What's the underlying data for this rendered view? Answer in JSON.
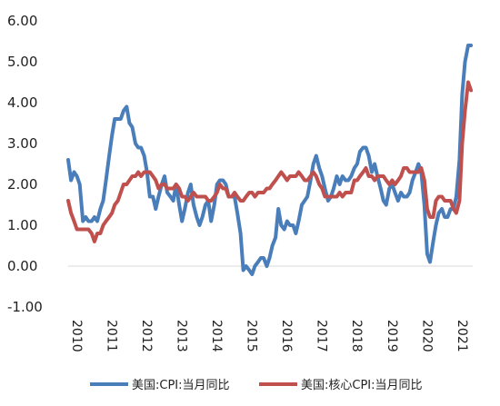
{
  "chart_data": {
    "type": "line",
    "title": "",
    "xlabel": "",
    "ylabel": "",
    "ylim": [
      -1,
      6
    ],
    "yticks": [
      "6.00",
      "5.00",
      "4.00",
      "3.00",
      "2.00",
      "1.00",
      "0.00",
      "-1.00"
    ],
    "xticks": [
      "2010",
      "2011",
      "2012",
      "2013",
      "2014",
      "2015",
      "2016",
      "2017",
      "2018",
      "2019",
      "2020",
      "2021"
    ],
    "grid": false,
    "legend_position": "bottom",
    "series": [
      {
        "name": "美国:CPI:当月同比",
        "color": "#4a7ebb",
        "points": [
          [
            2010.0,
            2.6
          ],
          [
            2010.08,
            2.1
          ],
          [
            2010.17,
            2.3
          ],
          [
            2010.25,
            2.2
          ],
          [
            2010.33,
            2.0
          ],
          [
            2010.42,
            1.1
          ],
          [
            2010.5,
            1.2
          ],
          [
            2010.58,
            1.1
          ],
          [
            2010.67,
            1.1
          ],
          [
            2010.75,
            1.2
          ],
          [
            2010.83,
            1.1
          ],
          [
            2010.92,
            1.4
          ],
          [
            2011.0,
            1.6
          ],
          [
            2011.08,
            2.1
          ],
          [
            2011.17,
            2.7
          ],
          [
            2011.25,
            3.2
          ],
          [
            2011.33,
            3.6
          ],
          [
            2011.42,
            3.6
          ],
          [
            2011.5,
            3.6
          ],
          [
            2011.58,
            3.8
          ],
          [
            2011.67,
            3.9
          ],
          [
            2011.75,
            3.5
          ],
          [
            2011.83,
            3.4
          ],
          [
            2011.92,
            3.0
          ],
          [
            2012.0,
            2.9
          ],
          [
            2012.08,
            2.9
          ],
          [
            2012.17,
            2.7
          ],
          [
            2012.25,
            2.3
          ],
          [
            2012.33,
            1.7
          ],
          [
            2012.42,
            1.7
          ],
          [
            2012.5,
            1.4
          ],
          [
            2012.58,
            1.7
          ],
          [
            2012.67,
            2.0
          ],
          [
            2012.75,
            2.2
          ],
          [
            2012.83,
            1.8
          ],
          [
            2012.92,
            1.7
          ],
          [
            2013.0,
            1.6
          ],
          [
            2013.08,
            2.0
          ],
          [
            2013.17,
            1.5
          ],
          [
            2013.25,
            1.1
          ],
          [
            2013.33,
            1.4
          ],
          [
            2013.42,
            1.8
          ],
          [
            2013.5,
            2.0
          ],
          [
            2013.58,
            1.5
          ],
          [
            2013.67,
            1.2
          ],
          [
            2013.75,
            1.0
          ],
          [
            2013.83,
            1.2
          ],
          [
            2013.92,
            1.5
          ],
          [
            2014.0,
            1.6
          ],
          [
            2014.08,
            1.1
          ],
          [
            2014.17,
            1.5
          ],
          [
            2014.25,
            2.0
          ],
          [
            2014.33,
            2.1
          ],
          [
            2014.42,
            2.1
          ],
          [
            2014.5,
            2.0
          ],
          [
            2014.58,
            1.7
          ],
          [
            2014.67,
            1.7
          ],
          [
            2014.75,
            1.7
          ],
          [
            2014.83,
            1.3
          ],
          [
            2014.92,
            0.8
          ],
          [
            2015.0,
            -0.1
          ],
          [
            2015.08,
            0.0
          ],
          [
            2015.17,
            -0.1
          ],
          [
            2015.25,
            -0.2
          ],
          [
            2015.33,
            0.0
          ],
          [
            2015.42,
            0.1
          ],
          [
            2015.5,
            0.2
          ],
          [
            2015.58,
            0.2
          ],
          [
            2015.67,
            0.0
          ],
          [
            2015.75,
            0.2
          ],
          [
            2015.83,
            0.5
          ],
          [
            2015.92,
            0.7
          ],
          [
            2016.0,
            1.4
          ],
          [
            2016.08,
            1.0
          ],
          [
            2016.17,
            0.9
          ],
          [
            2016.25,
            1.1
          ],
          [
            2016.33,
            1.0
          ],
          [
            2016.42,
            1.0
          ],
          [
            2016.5,
            0.8
          ],
          [
            2016.58,
            1.1
          ],
          [
            2016.67,
            1.5
          ],
          [
            2016.75,
            1.6
          ],
          [
            2016.83,
            1.7
          ],
          [
            2016.92,
            2.1
          ],
          [
            2017.0,
            2.5
          ],
          [
            2017.08,
            2.7
          ],
          [
            2017.17,
            2.4
          ],
          [
            2017.25,
            2.2
          ],
          [
            2017.33,
            1.9
          ],
          [
            2017.42,
            1.6
          ],
          [
            2017.5,
            1.7
          ],
          [
            2017.58,
            1.9
          ],
          [
            2017.67,
            2.2
          ],
          [
            2017.75,
            2.0
          ],
          [
            2017.83,
            2.2
          ],
          [
            2017.92,
            2.1
          ],
          [
            2018.0,
            2.1
          ],
          [
            2018.08,
            2.2
          ],
          [
            2018.17,
            2.4
          ],
          [
            2018.25,
            2.5
          ],
          [
            2018.33,
            2.8
          ],
          [
            2018.42,
            2.9
          ],
          [
            2018.5,
            2.9
          ],
          [
            2018.58,
            2.7
          ],
          [
            2018.67,
            2.3
          ],
          [
            2018.75,
            2.5
          ],
          [
            2018.83,
            2.2
          ],
          [
            2018.92,
            1.9
          ],
          [
            2019.0,
            1.6
          ],
          [
            2019.08,
            1.5
          ],
          [
            2019.17,
            1.9
          ],
          [
            2019.25,
            2.0
          ],
          [
            2019.33,
            1.8
          ],
          [
            2019.42,
            1.6
          ],
          [
            2019.5,
            1.8
          ],
          [
            2019.58,
            1.7
          ],
          [
            2019.67,
            1.7
          ],
          [
            2019.75,
            1.8
          ],
          [
            2019.83,
            2.1
          ],
          [
            2019.92,
            2.3
          ],
          [
            2020.0,
            2.5
          ],
          [
            2020.08,
            2.3
          ],
          [
            2020.17,
            1.5
          ],
          [
            2020.25,
            0.3
          ],
          [
            2020.33,
            0.1
          ],
          [
            2020.42,
            0.6
          ],
          [
            2020.5,
            1.0
          ],
          [
            2020.58,
            1.3
          ],
          [
            2020.67,
            1.4
          ],
          [
            2020.75,
            1.2
          ],
          [
            2020.83,
            1.2
          ],
          [
            2020.92,
            1.4
          ],
          [
            2021.0,
            1.4
          ],
          [
            2021.08,
            1.7
          ],
          [
            2021.17,
            2.6
          ],
          [
            2021.25,
            4.2
          ],
          [
            2021.33,
            5.0
          ],
          [
            2021.42,
            5.4
          ],
          [
            2021.5,
            5.4
          ]
        ]
      },
      {
        "name": "美国:核心CPI:当月同比",
        "color": "#c0504d",
        "points": [
          [
            2010.0,
            1.6
          ],
          [
            2010.08,
            1.3
          ],
          [
            2010.17,
            1.1
          ],
          [
            2010.25,
            0.9
          ],
          [
            2010.33,
            0.9
          ],
          [
            2010.42,
            0.9
          ],
          [
            2010.5,
            0.9
          ],
          [
            2010.58,
            0.9
          ],
          [
            2010.67,
            0.8
          ],
          [
            2010.75,
            0.6
          ],
          [
            2010.83,
            0.8
          ],
          [
            2010.92,
            0.8
          ],
          [
            2011.0,
            1.0
          ],
          [
            2011.08,
            1.1
          ],
          [
            2011.17,
            1.2
          ],
          [
            2011.25,
            1.3
          ],
          [
            2011.33,
            1.5
          ],
          [
            2011.42,
            1.6
          ],
          [
            2011.5,
            1.8
          ],
          [
            2011.58,
            2.0
          ],
          [
            2011.67,
            2.0
          ],
          [
            2011.75,
            2.1
          ],
          [
            2011.83,
            2.2
          ],
          [
            2011.92,
            2.2
          ],
          [
            2012.0,
            2.3
          ],
          [
            2012.08,
            2.2
          ],
          [
            2012.17,
            2.3
          ],
          [
            2012.25,
            2.3
          ],
          [
            2012.33,
            2.3
          ],
          [
            2012.42,
            2.2
          ],
          [
            2012.5,
            2.1
          ],
          [
            2012.58,
            1.9
          ],
          [
            2012.67,
            2.0
          ],
          [
            2012.75,
            2.0
          ],
          [
            2012.83,
            1.9
          ],
          [
            2012.92,
            1.9
          ],
          [
            2013.0,
            1.9
          ],
          [
            2013.08,
            2.0
          ],
          [
            2013.17,
            1.9
          ],
          [
            2013.25,
            1.7
          ],
          [
            2013.33,
            1.7
          ],
          [
            2013.42,
            1.6
          ],
          [
            2013.5,
            1.7
          ],
          [
            2013.58,
            1.8
          ],
          [
            2013.67,
            1.7
          ],
          [
            2013.75,
            1.7
          ],
          [
            2013.83,
            1.7
          ],
          [
            2013.92,
            1.7
          ],
          [
            2014.0,
            1.6
          ],
          [
            2014.08,
            1.6
          ],
          [
            2014.17,
            1.7
          ],
          [
            2014.25,
            1.8
          ],
          [
            2014.33,
            2.0
          ],
          [
            2014.42,
            1.9
          ],
          [
            2014.5,
            1.9
          ],
          [
            2014.58,
            1.7
          ],
          [
            2014.67,
            1.7
          ],
          [
            2014.75,
            1.8
          ],
          [
            2014.83,
            1.7
          ],
          [
            2014.92,
            1.6
          ],
          [
            2015.0,
            1.6
          ],
          [
            2015.08,
            1.7
          ],
          [
            2015.17,
            1.8
          ],
          [
            2015.25,
            1.8
          ],
          [
            2015.33,
            1.7
          ],
          [
            2015.42,
            1.8
          ],
          [
            2015.5,
            1.8
          ],
          [
            2015.58,
            1.8
          ],
          [
            2015.67,
            1.9
          ],
          [
            2015.75,
            1.9
          ],
          [
            2015.83,
            2.0
          ],
          [
            2015.92,
            2.1
          ],
          [
            2016.0,
            2.2
          ],
          [
            2016.08,
            2.3
          ],
          [
            2016.17,
            2.2
          ],
          [
            2016.25,
            2.1
          ],
          [
            2016.33,
            2.2
          ],
          [
            2016.42,
            2.2
          ],
          [
            2016.5,
            2.2
          ],
          [
            2016.58,
            2.3
          ],
          [
            2016.67,
            2.2
          ],
          [
            2016.75,
            2.1
          ],
          [
            2016.83,
            2.1
          ],
          [
            2016.92,
            2.2
          ],
          [
            2017.0,
            2.3
          ],
          [
            2017.08,
            2.2
          ],
          [
            2017.17,
            2.0
          ],
          [
            2017.25,
            1.9
          ],
          [
            2017.33,
            1.7
          ],
          [
            2017.42,
            1.7
          ],
          [
            2017.5,
            1.7
          ],
          [
            2017.58,
            1.7
          ],
          [
            2017.67,
            1.7
          ],
          [
            2017.75,
            1.8
          ],
          [
            2017.83,
            1.7
          ],
          [
            2017.92,
            1.8
          ],
          [
            2018.0,
            1.8
          ],
          [
            2018.08,
            1.8
          ],
          [
            2018.17,
            2.1
          ],
          [
            2018.25,
            2.1
          ],
          [
            2018.33,
            2.2
          ],
          [
            2018.42,
            2.3
          ],
          [
            2018.5,
            2.4
          ],
          [
            2018.58,
            2.2
          ],
          [
            2018.67,
            2.2
          ],
          [
            2018.75,
            2.1
          ],
          [
            2018.83,
            2.2
          ],
          [
            2018.92,
            2.2
          ],
          [
            2019.0,
            2.2
          ],
          [
            2019.08,
            2.1
          ],
          [
            2019.17,
            2.0
          ],
          [
            2019.25,
            2.1
          ],
          [
            2019.33,
            2.0
          ],
          [
            2019.42,
            2.1
          ],
          [
            2019.5,
            2.2
          ],
          [
            2019.58,
            2.4
          ],
          [
            2019.67,
            2.4
          ],
          [
            2019.75,
            2.3
          ],
          [
            2019.83,
            2.3
          ],
          [
            2019.92,
            2.3
          ],
          [
            2020.0,
            2.3
          ],
          [
            2020.08,
            2.4
          ],
          [
            2020.17,
            2.1
          ],
          [
            2020.25,
            1.4
          ],
          [
            2020.33,
            1.2
          ],
          [
            2020.42,
            1.2
          ],
          [
            2020.5,
            1.6
          ],
          [
            2020.58,
            1.7
          ],
          [
            2020.67,
            1.7
          ],
          [
            2020.75,
            1.6
          ],
          [
            2020.83,
            1.6
          ],
          [
            2020.92,
            1.6
          ],
          [
            2021.0,
            1.4
          ],
          [
            2021.08,
            1.3
          ],
          [
            2021.17,
            1.6
          ],
          [
            2021.25,
            3.0
          ],
          [
            2021.33,
            3.8
          ],
          [
            2021.42,
            4.5
          ],
          [
            2021.5,
            4.3
          ]
        ]
      }
    ]
  }
}
